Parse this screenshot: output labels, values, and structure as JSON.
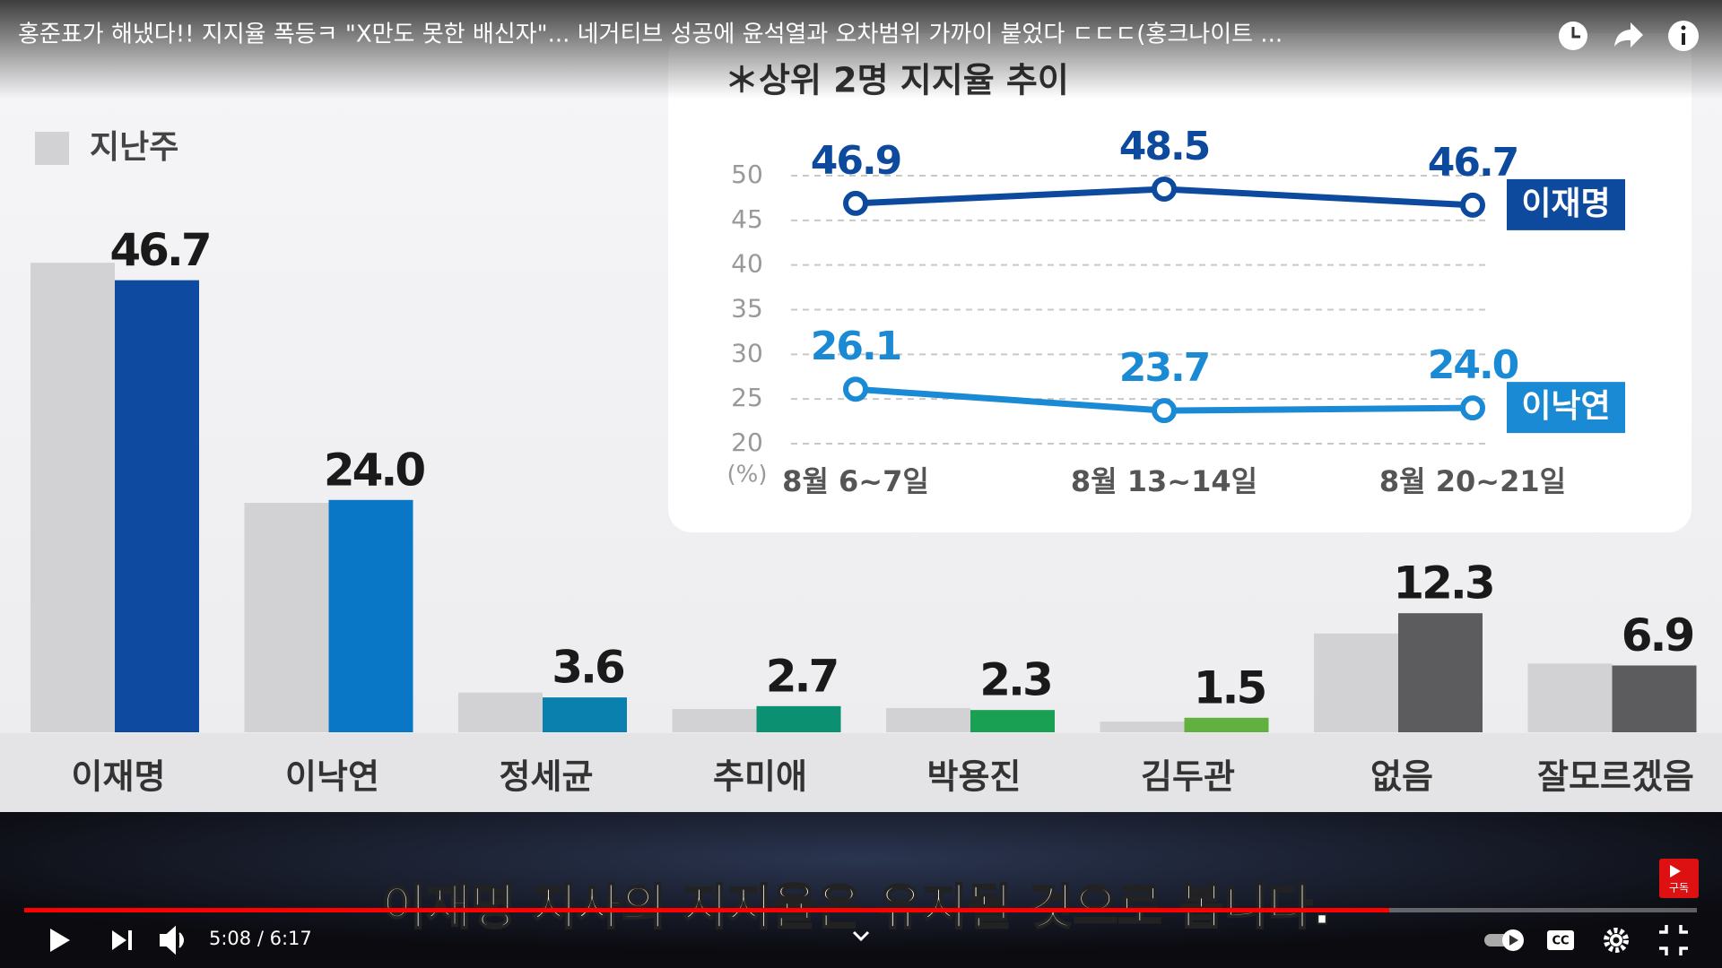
{
  "player": {
    "title": "홍준표가 해냈다!! 지지율 폭등ㅋ \"X만도 못한 배신자\"... 네거티브 성공에 윤석열과 오차범위 가까이 붙었다 ㄷㄷㄷ(홍크나이트 ...",
    "time": "5:08 / 6:17",
    "subtitle": "이재명 지사의 지지율은 유지될 것으로 봅니다.",
    "subscribe": "구독"
  },
  "chart_data": [
    {
      "type": "bar",
      "categories": [
        "이재명",
        "이낙연",
        "정세균",
        "추미애",
        "박용진",
        "김두관",
        "없음",
        "잘모르겠음"
      ],
      "series": [
        {
          "name": "지난주",
          "color": "#d2d2d4",
          "values": [
            48.5,
            23.7,
            4.1,
            2.4,
            2.5,
            1.1,
            10.2,
            7.1
          ]
        },
        {
          "colors": [
            "#0d4aa0",
            "#0a76c6",
            "#0a80ae",
            "#0c9072",
            "#1aa052",
            "#62b040",
            "#5c5c5e",
            "#5c5c5e"
          ],
          "values": [
            46.7,
            24.0,
            3.6,
            2.7,
            2.3,
            1.5,
            12.3,
            6.9
          ],
          "value_labels": [
            "46.7",
            "24.0",
            "3.6",
            "2.7",
            "2.3",
            "1.5",
            "12.3",
            "6.9"
          ]
        }
      ],
      "ylim": [
        0,
        55
      ]
    },
    {
      "type": "line",
      "title": "＊상위 2명 지지율 추이",
      "y_unit_label": "(%)",
      "categories": [
        "8월 6~7일",
        "8월 13~14일",
        "8월 20~21일"
      ],
      "series": [
        {
          "name": "이재명",
          "color": "#0d4a9e",
          "values": [
            46.9,
            48.5,
            46.7
          ],
          "value_labels": [
            "46.9",
            "48.5",
            "46.7"
          ]
        },
        {
          "name": "이낙연",
          "color": "#1a8ad4",
          "values": [
            26.1,
            23.7,
            24.0
          ],
          "value_labels": [
            "26.1",
            "23.7",
            "24.0"
          ]
        }
      ],
      "ylim": [
        20,
        50
      ],
      "yticks": [
        20,
        25,
        30,
        35,
        40,
        45,
        50
      ],
      "grid": true
    }
  ]
}
